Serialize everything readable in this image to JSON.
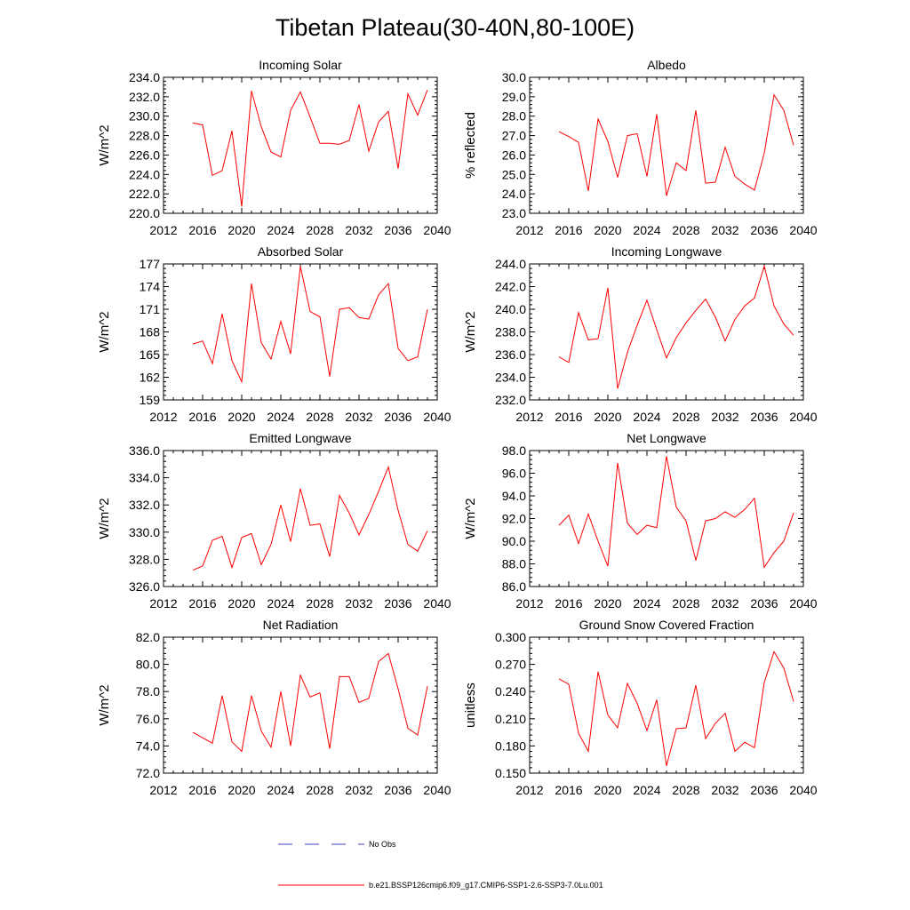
{
  "figure": {
    "title": "Tibetan Plateau(30-40N,80-100E)",
    "legend": [
      {
        "label": "No Obs",
        "color": "#4040c0",
        "style": "dashed"
      },
      {
        "label": "b.e21.BSSP126cmip6.f09_g17.CMIP6-SSP1-2.6-SSP3-7.0Lu.001",
        "color": "#ff0000",
        "style": "solid"
      }
    ],
    "line_color": "#ff0000"
  },
  "chart_data": [
    {
      "type": "line",
      "title": "Incoming Solar",
      "xlabel": "",
      "ylabel": "W/m^2",
      "xlim": [
        2012,
        2040
      ],
      "ylim": [
        220,
        234
      ],
      "xticks": [
        2012,
        2016,
        2020,
        2024,
        2028,
        2032,
        2036,
        2040
      ],
      "yticks": [
        "220.0",
        "222.0",
        "224.0",
        "226.0",
        "228.0",
        "230.0",
        "232.0",
        "234.0"
      ],
      "x": [
        2015,
        2016,
        2017,
        2018,
        2019,
        2020,
        2021,
        2022,
        2023,
        2024,
        2025,
        2026,
        2027,
        2028,
        2029,
        2030,
        2031,
        2032,
        2033,
        2034,
        2035,
        2036,
        2037,
        2038,
        2039
      ],
      "y": [
        229.3,
        229.1,
        223.9,
        224.4,
        228.5,
        220.7,
        232.6,
        228.9,
        226.3,
        225.8,
        230.6,
        232.5,
        229.9,
        227.2,
        227.2,
        227.1,
        227.5,
        231.2,
        226.4,
        229.4,
        230.5,
        224.6,
        232.3,
        230.1,
        232.7
      ]
    },
    {
      "type": "line",
      "title": "Albedo",
      "xlabel": "",
      "ylabel": "% reflected",
      "xlim": [
        2012,
        2040
      ],
      "ylim": [
        23,
        30
      ],
      "xticks": [
        2012,
        2016,
        2020,
        2024,
        2028,
        2032,
        2036,
        2040
      ],
      "yticks": [
        "23.0",
        "24.0",
        "25.0",
        "26.0",
        "27.0",
        "28.0",
        "29.0",
        "30.0"
      ],
      "x": [
        2015,
        2016,
        2017,
        2018,
        2019,
        2020,
        2021,
        2022,
        2023,
        2024,
        2025,
        2026,
        2027,
        2028,
        2029,
        2030,
        2031,
        2032,
        2033,
        2034,
        2035,
        2036,
        2037,
        2038,
        2039
      ],
      "y": [
        27.2,
        26.95,
        26.65,
        24.15,
        27.85,
        26.7,
        24.85,
        27.0,
        27.1,
        24.9,
        28.1,
        23.9,
        25.6,
        25.2,
        28.3,
        24.55,
        24.6,
        26.4,
        24.9,
        24.5,
        24.2,
        26.1,
        29.1,
        28.3,
        26.5
      ]
    },
    {
      "type": "line",
      "title": "Absorbed Solar",
      "xlabel": "",
      "ylabel": "W/m^2",
      "xlim": [
        2012,
        2040
      ],
      "ylim": [
        159,
        177
      ],
      "xticks": [
        2012,
        2016,
        2020,
        2024,
        2028,
        2032,
        2036,
        2040
      ],
      "yticks": [
        "159",
        "162",
        "165",
        "168",
        "171",
        "174",
        "177"
      ],
      "x": [
        2015,
        2016,
        2017,
        2018,
        2019,
        2020,
        2021,
        2022,
        2023,
        2024,
        2025,
        2026,
        2027,
        2028,
        2029,
        2030,
        2031,
        2032,
        2033,
        2034,
        2035,
        2036,
        2037,
        2038,
        2039
      ],
      "y": [
        166.4,
        166.8,
        163.8,
        170.4,
        164.2,
        161.4,
        174.4,
        166.6,
        164.4,
        169.4,
        165.1,
        176.7,
        170.7,
        170.0,
        162.1,
        171.0,
        171.2,
        169.9,
        169.7,
        172.9,
        174.4,
        165.8,
        164.2,
        164.7,
        171.0
      ]
    },
    {
      "type": "line",
      "title": "Incoming Longwave",
      "xlabel": "",
      "ylabel": "W/m^2",
      "xlim": [
        2012,
        2040
      ],
      "ylim": [
        232,
        244
      ],
      "xticks": [
        2012,
        2016,
        2020,
        2024,
        2028,
        2032,
        2036,
        2040
      ],
      "yticks": [
        "232.0",
        "234.0",
        "236.0",
        "238.0",
        "240.0",
        "242.0",
        "244.0"
      ],
      "x": [
        2015,
        2016,
        2017,
        2018,
        2019,
        2020,
        2021,
        2022,
        2023,
        2024,
        2025,
        2026,
        2027,
        2028,
        2029,
        2030,
        2031,
        2032,
        2033,
        2034,
        2035,
        2036,
        2037,
        2038,
        2039
      ],
      "y": [
        235.8,
        235.3,
        239.7,
        237.3,
        237.4,
        241.9,
        233.0,
        236.2,
        238.6,
        240.8,
        238.2,
        235.7,
        237.5,
        238.8,
        239.9,
        240.9,
        239.3,
        237.2,
        239.1,
        240.3,
        241.0,
        243.8,
        240.3,
        238.7,
        237.7
      ]
    },
    {
      "type": "line",
      "title": "Emitted Longwave",
      "xlabel": "",
      "ylabel": "W/m^2",
      "xlim": [
        2012,
        2040
      ],
      "ylim": [
        326,
        336
      ],
      "xticks": [
        2012,
        2016,
        2020,
        2024,
        2028,
        2032,
        2036,
        2040
      ],
      "yticks": [
        "326.0",
        "328.0",
        "330.0",
        "332.0",
        "334.0",
        "336.0"
      ],
      "x": [
        2015,
        2016,
        2017,
        2018,
        2019,
        2020,
        2021,
        2022,
        2023,
        2024,
        2025,
        2026,
        2027,
        2028,
        2029,
        2030,
        2031,
        2032,
        2033,
        2034,
        2035,
        2036,
        2037,
        2038,
        2039
      ],
      "y": [
        327.2,
        327.5,
        329.4,
        329.7,
        327.4,
        329.6,
        329.9,
        327.6,
        329.1,
        332.0,
        329.3,
        333.2,
        330.5,
        330.6,
        328.2,
        332.7,
        331.4,
        329.8,
        331.3,
        333.0,
        334.8,
        331.6,
        329.1,
        328.6,
        330.1
      ]
    },
    {
      "type": "line",
      "title": "Net Longwave",
      "xlabel": "",
      "ylabel": "W/m^2",
      "xlim": [
        2012,
        2040
      ],
      "ylim": [
        86,
        98
      ],
      "xticks": [
        2012,
        2016,
        2020,
        2024,
        2028,
        2032,
        2036,
        2040
      ],
      "yticks": [
        "86.0",
        "88.0",
        "90.0",
        "92.0",
        "94.0",
        "96.0",
        "98.0"
      ],
      "x": [
        2015,
        2016,
        2017,
        2018,
        2019,
        2020,
        2021,
        2022,
        2023,
        2024,
        2025,
        2026,
        2027,
        2028,
        2029,
        2030,
        2031,
        2032,
        2033,
        2034,
        2035,
        2036,
        2037,
        2038,
        2039
      ],
      "y": [
        91.4,
        92.3,
        89.8,
        92.4,
        90.0,
        87.8,
        96.9,
        91.6,
        90.6,
        91.4,
        91.2,
        97.5,
        93.0,
        91.8,
        88.3,
        91.8,
        92.0,
        92.6,
        92.1,
        92.8,
        93.8,
        87.7,
        89.0,
        90.0,
        92.5
      ]
    },
    {
      "type": "line",
      "title": "Net Radiation",
      "xlabel": "",
      "ylabel": "W/m^2",
      "xlim": [
        2012,
        2040
      ],
      "ylim": [
        72,
        82
      ],
      "xticks": [
        2012,
        2016,
        2020,
        2024,
        2028,
        2032,
        2036,
        2040
      ],
      "yticks": [
        "72.0",
        "74.0",
        "76.0",
        "78.0",
        "80.0",
        "82.0"
      ],
      "x": [
        2015,
        2016,
        2017,
        2018,
        2019,
        2020,
        2021,
        2022,
        2023,
        2024,
        2025,
        2026,
        2027,
        2028,
        2029,
        2030,
        2031,
        2032,
        2033,
        2034,
        2035,
        2036,
        2037,
        2038,
        2039
      ],
      "y": [
        75.0,
        74.6,
        74.2,
        77.7,
        74.3,
        73.6,
        77.7,
        75.1,
        73.9,
        78.0,
        74.0,
        79.2,
        77.6,
        77.9,
        73.8,
        79.1,
        79.1,
        77.2,
        77.5,
        80.2,
        80.8,
        78.2,
        75.3,
        74.8,
        78.4
      ]
    },
    {
      "type": "line",
      "title": "Ground Snow Covered Fraction",
      "xlabel": "",
      "ylabel": "unitless",
      "xlim": [
        2012,
        2040
      ],
      "ylim": [
        0.15,
        0.3
      ],
      "xticks": [
        2012,
        2016,
        2020,
        2024,
        2028,
        2032,
        2036,
        2040
      ],
      "yticks": [
        "0.150",
        "0.180",
        "0.210",
        "0.240",
        "0.270",
        "0.300"
      ],
      "x": [
        2015,
        2016,
        2017,
        2018,
        2019,
        2020,
        2021,
        2022,
        2023,
        2024,
        2025,
        2026,
        2027,
        2028,
        2029,
        2030,
        2031,
        2032,
        2033,
        2034,
        2035,
        2036,
        2037,
        2038,
        2039
      ],
      "y": [
        0.254,
        0.248,
        0.194,
        0.174,
        0.262,
        0.214,
        0.2,
        0.249,
        0.227,
        0.197,
        0.231,
        0.158,
        0.199,
        0.2,
        0.247,
        0.188,
        0.205,
        0.216,
        0.174,
        0.184,
        0.178,
        0.25,
        0.284,
        0.266,
        0.229
      ]
    }
  ]
}
